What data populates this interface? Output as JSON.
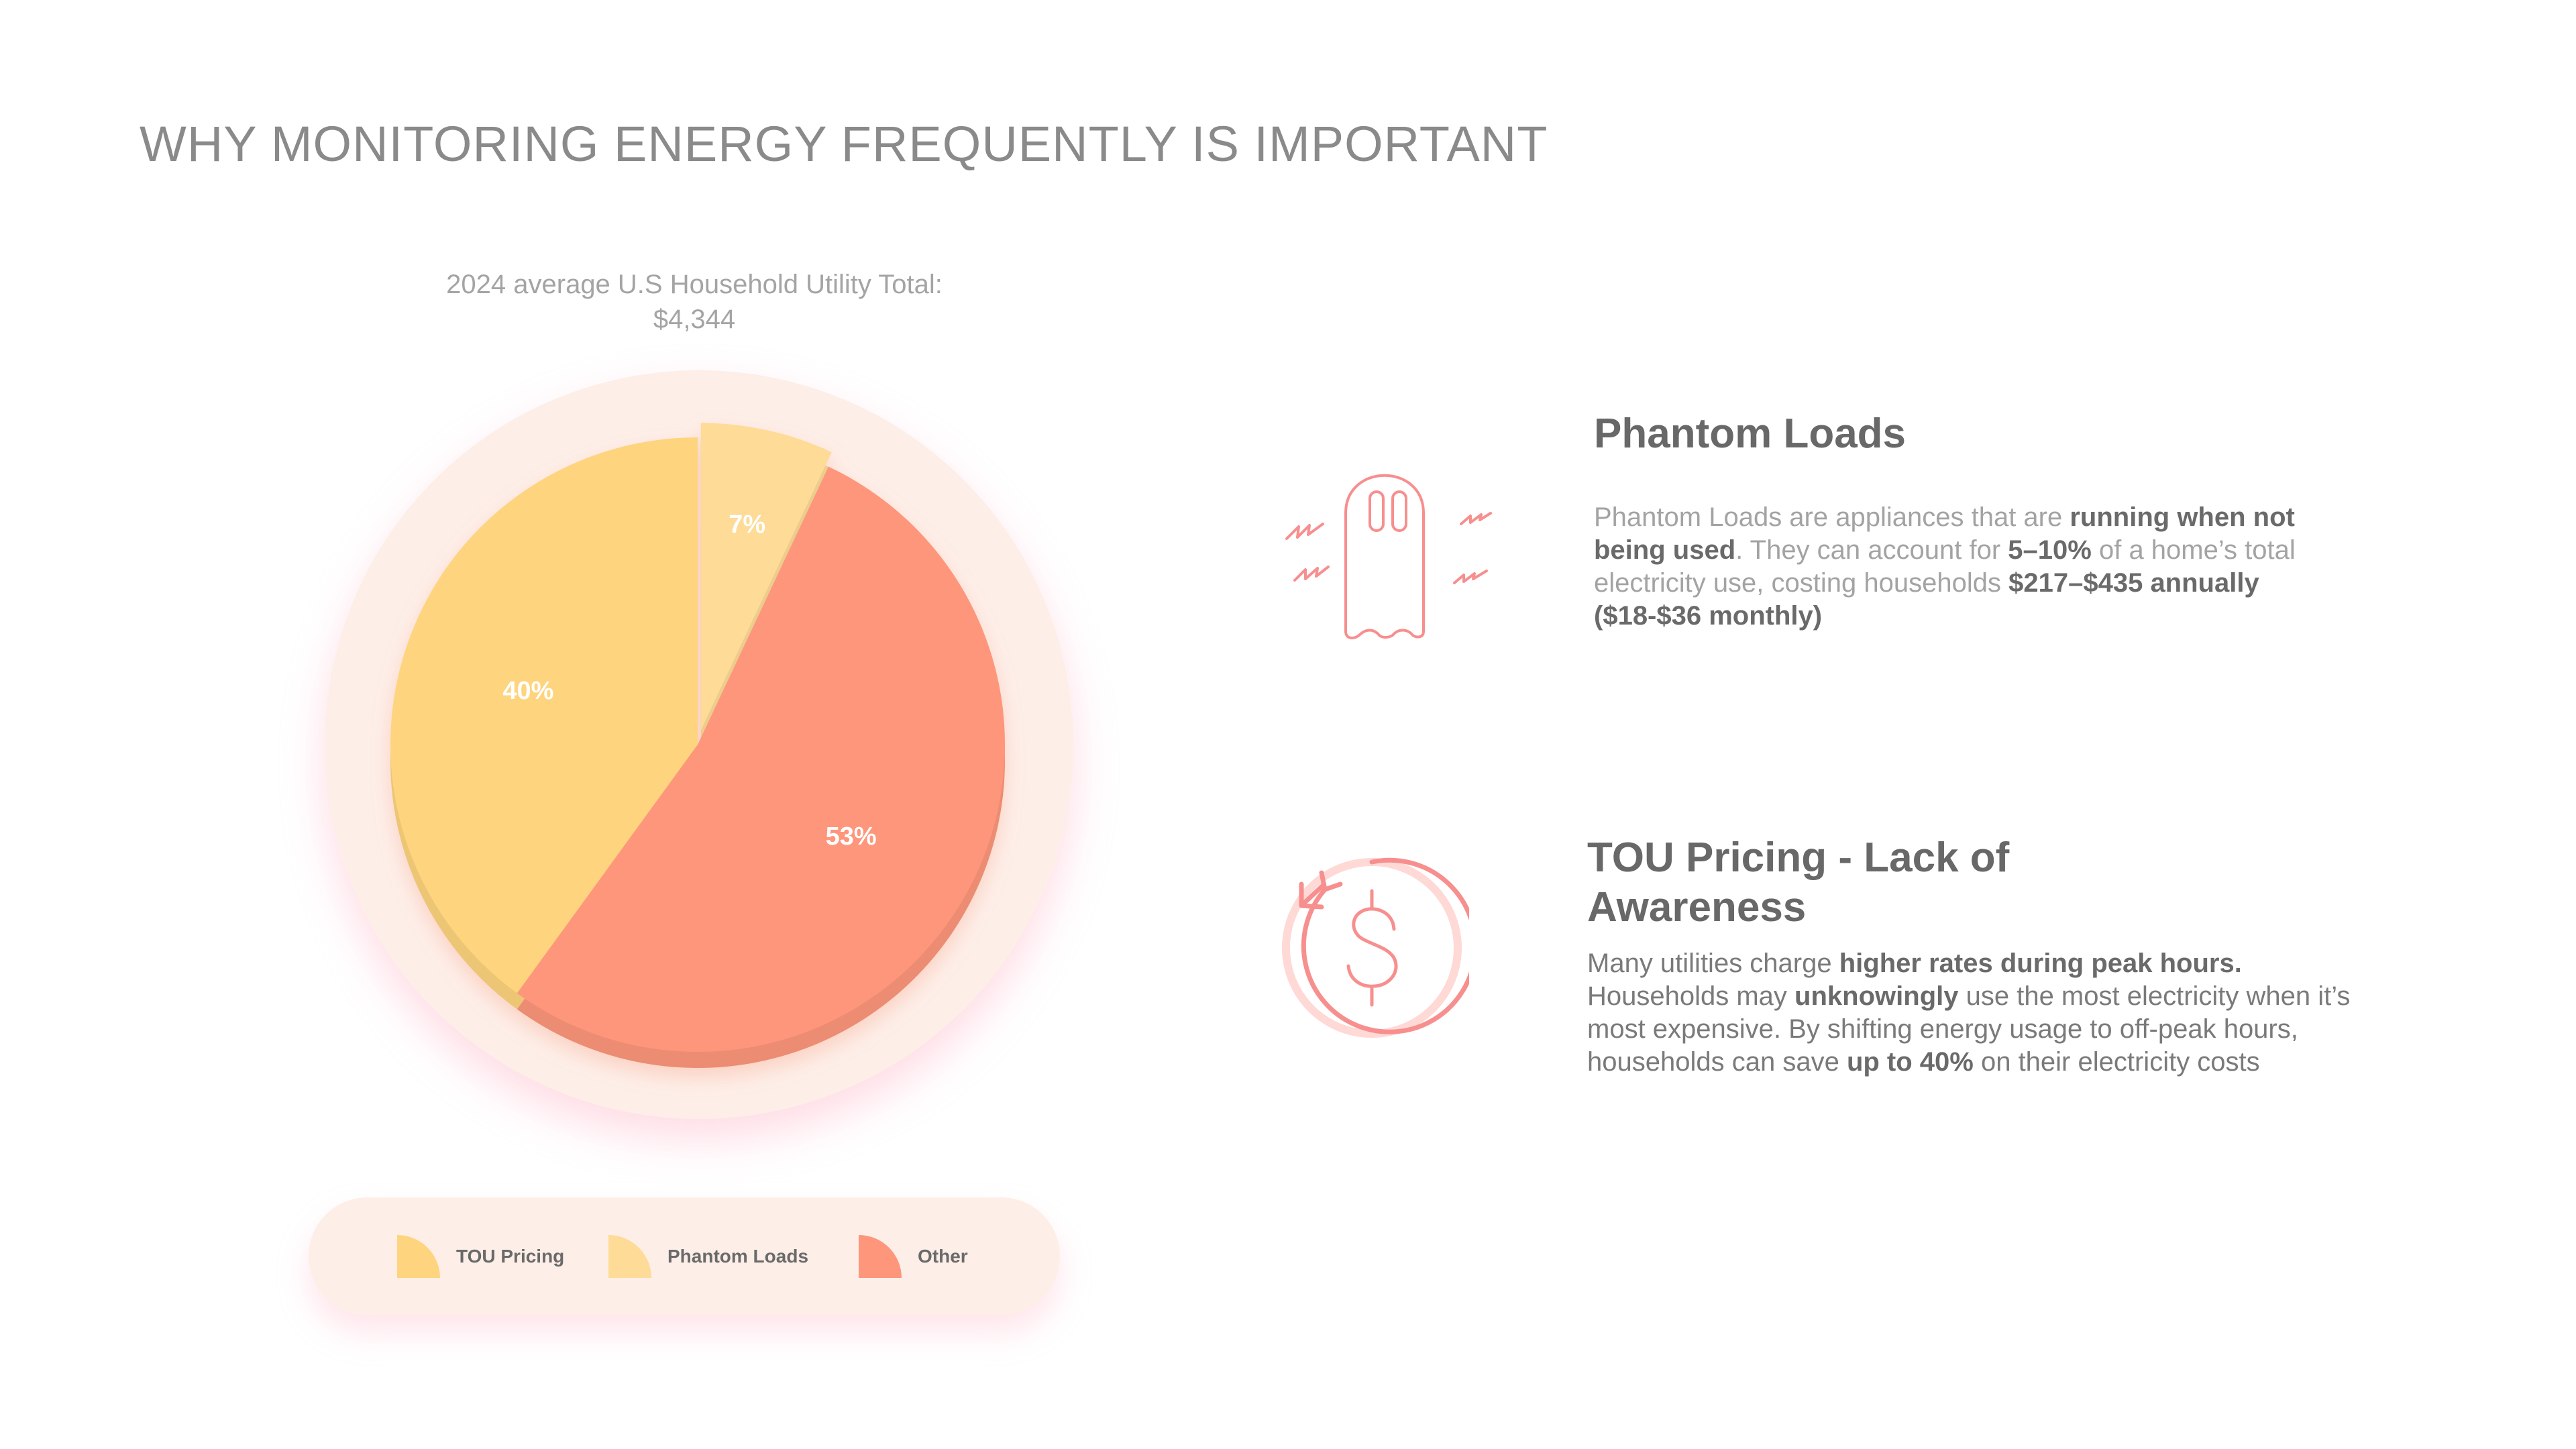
{
  "title": "WHY MONITORING ENERGY FREQUENTLY IS IMPORTANT",
  "chart_data": {
    "type": "pie",
    "title_line1": "2024 average U.S Household Utility Total:",
    "title_line2": "$4,344",
    "slices": [
      {
        "name": "TOU Pricing",
        "value": 40,
        "label": "40%",
        "color": "#fed47e"
      },
      {
        "name": "Phantom Loads",
        "value": 7,
        "label": "7%",
        "color": "#fedc97"
      },
      {
        "name": "Other",
        "value": 53,
        "label": "53%",
        "color": "#fe967c"
      }
    ],
    "legend_position": "bottom"
  },
  "legend": [
    {
      "label": "TOU Pricing",
      "color": "#fed47e"
    },
    {
      "label": "Phantom Loads",
      "color": "#fedc97"
    },
    {
      "label": "Other",
      "color": "#fe967c"
    }
  ],
  "features": {
    "phantom": {
      "icon": "ghost-icon",
      "title": "Phantom Loads",
      "body": [
        {
          "t": "Phantom Loads are appliances that are ",
          "b": false
        },
        {
          "t": "running when not being used",
          "b": true
        },
        {
          "t": ". They can account for ",
          "b": false
        },
        {
          "t": "5–10%",
          "b": true
        },
        {
          "t": " of a home’s total electricity use, costing households ",
          "b": false
        },
        {
          "t": "$217–$435 annually ($18-$36 monthly)",
          "b": true
        }
      ]
    },
    "tou": {
      "icon": "dollar-cycle-icon",
      "title": "TOU Pricing - Lack of Awareness",
      "body": [
        {
          "t": "Many utilities charge ",
          "b": false
        },
        {
          "t": "higher rates during peak hours.",
          "b": true
        },
        {
          "t": " Households may ",
          "b": false
        },
        {
          "t": "unknowingly",
          "b": true
        },
        {
          "t": " use the most electricity when it’s most expensive. By shifting energy usage to off-peak hours, households can save ",
          "b": false
        },
        {
          "t": "up to 40%",
          "b": true
        },
        {
          "t": " on their electricity costs",
          "b": false
        }
      ]
    }
  },
  "colors": {
    "backdrop": "#fdeee8",
    "icon_stroke": "#f78f8f"
  }
}
